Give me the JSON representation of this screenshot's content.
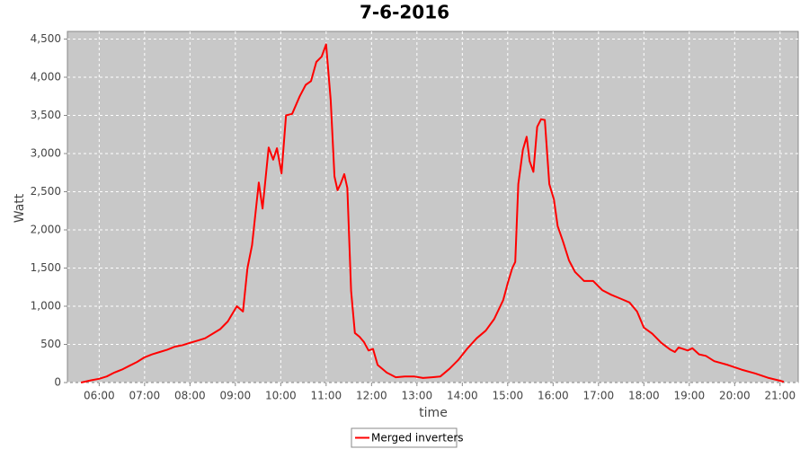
{
  "chart_data": {
    "type": "line",
    "title": "7-6-2016",
    "x_label": "time",
    "y_label": "Watt",
    "x": [
      "05:36",
      "05:50",
      "06:00",
      "06:10",
      "06:20",
      "06:30",
      "06:40",
      "06:50",
      "07:00",
      "07:10",
      "07:20",
      "07:30",
      "07:40",
      "07:50",
      "08:00",
      "08:10",
      "08:20",
      "08:30",
      "08:40",
      "08:50",
      "09:02",
      "09:10",
      "09:16",
      "09:22",
      "09:31",
      "09:36",
      "09:44",
      "09:50",
      "09:55",
      "10:01",
      "10:07",
      "10:15",
      "10:25",
      "10:33",
      "10:40",
      "10:47",
      "10:54",
      "11:00",
      "11:06",
      "11:11",
      "11:15",
      "11:19",
      "11:24",
      "11:28",
      "11:33",
      "11:38",
      "11:44",
      "11:50",
      "11:56",
      "12:02",
      "12:08",
      "12:20",
      "12:32",
      "12:44",
      "12:56",
      "13:08",
      "13:20",
      "13:31",
      "13:43",
      "13:55",
      "14:07",
      "14:19",
      "14:31",
      "14:42",
      "14:54",
      "15:00",
      "15:06",
      "15:10",
      "15:14",
      "15:20",
      "15:25",
      "15:29",
      "15:34",
      "15:39",
      "15:44",
      "15:49",
      "15:55",
      "16:01",
      "16:06",
      "16:13",
      "16:21",
      "16:29",
      "16:41",
      "16:53",
      "17:05",
      "17:17",
      "17:29",
      "17:41",
      "17:51",
      "18:00",
      "18:11",
      "18:23",
      "18:35",
      "18:41",
      "18:46",
      "18:58",
      "19:04",
      "19:13",
      "19:22",
      "19:33",
      "19:51",
      "20:09",
      "20:27",
      "20:45",
      "20:57",
      "21:05"
    ],
    "series": [
      {
        "name": "Merged inverters",
        "color": "#ff0000",
        "values": [
          0,
          30,
          50,
          80,
          130,
          170,
          220,
          270,
          330,
          370,
          400,
          430,
          470,
          490,
          520,
          550,
          580,
          640,
          700,
          800,
          1000,
          930,
          1500,
          1800,
          2620,
          2280,
          3080,
          2920,
          3070,
          2740,
          3500,
          3520,
          3750,
          3900,
          3950,
          4200,
          4270,
          4430,
          3700,
          2700,
          2520,
          2600,
          2730,
          2550,
          1200,
          650,
          600,
          530,
          420,
          440,
          230,
          130,
          70,
          80,
          80,
          60,
          70,
          80,
          180,
          300,
          450,
          580,
          680,
          830,
          1080,
          1300,
          1500,
          1580,
          2600,
          3050,
          3220,
          2900,
          2760,
          3350,
          3450,
          3440,
          2600,
          2400,
          2050,
          1850,
          1600,
          1450,
          1330,
          1330,
          1210,
          1150,
          1100,
          1050,
          930,
          720,
          640,
          520,
          430,
          400,
          460,
          420,
          450,
          370,
          350,
          280,
          230,
          170,
          120,
          60,
          30,
          10
        ]
      }
    ],
    "xlim": [
      "05:18",
      "21:24"
    ],
    "xticks": [
      "06:00",
      "07:00",
      "08:00",
      "09:00",
      "10:00",
      "11:00",
      "12:00",
      "13:00",
      "14:00",
      "15:00",
      "16:00",
      "17:00",
      "18:00",
      "19:00",
      "20:00",
      "21:00"
    ],
    "ylim": [
      0,
      4600
    ],
    "yticks": [
      0,
      500,
      {
        "value": 1000,
        "label": "1,000"
      },
      {
        "value": 1500,
        "label": "1,500"
      },
      {
        "value": 2000,
        "label": "2,000"
      },
      {
        "value": 2500,
        "label": "2,500"
      },
      {
        "value": 3000,
        "label": "3,000"
      },
      {
        "value": 3500,
        "label": "3,500"
      },
      {
        "value": 4000,
        "label": "4,000"
      },
      {
        "value": 4500,
        "label": "4,500"
      }
    ],
    "grid": true,
    "legend": "bottom"
  }
}
